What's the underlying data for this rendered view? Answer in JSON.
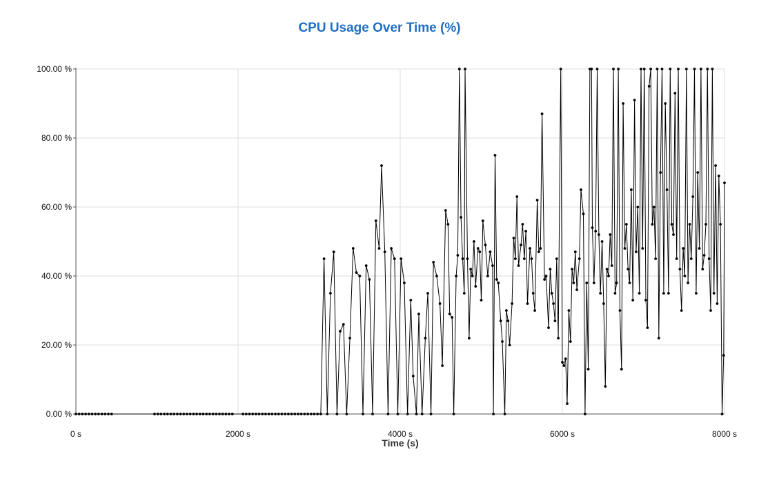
{
  "chart_data": {
    "type": "line",
    "title": "CPU Usage Over Time (%)",
    "xlabel": "Time (s)",
    "ylabel": "",
    "xlim": [
      0,
      8000
    ],
    "ylim": [
      0,
      100
    ],
    "x_ticks": [
      0,
      2000,
      4000,
      6000,
      8000
    ],
    "x_tick_labels": [
      "0 s",
      "2000 s",
      "4000 s",
      "6000 s",
      "8000 s"
    ],
    "y_ticks": [
      0,
      20,
      40,
      60,
      80,
      100
    ],
    "y_tick_labels": [
      "0.00 %",
      "20.00 %",
      "40.00 %",
      "60.00 %",
      "80.00 %",
      "100.00 %"
    ],
    "grid": true,
    "legend": "none",
    "colors": {
      "line": "#000000",
      "title": "#1f6fc4",
      "grid": "#dddddd"
    },
    "series": [
      {
        "points": [
          [
            0,
            0
          ],
          [
            40,
            0
          ],
          [
            80,
            0
          ],
          [
            120,
            0
          ],
          [
            160,
            0
          ],
          [
            200,
            0
          ],
          [
            240,
            0
          ],
          [
            280,
            0
          ],
          [
            320,
            0
          ],
          [
            360,
            0
          ],
          [
            400,
            0
          ],
          [
            440,
            0
          ],
          [
            970,
            0
          ],
          [
            1010,
            0
          ],
          [
            1050,
            0
          ],
          [
            1090,
            0
          ],
          [
            1130,
            0
          ],
          [
            1170,
            0
          ],
          [
            1210,
            0
          ],
          [
            1250,
            0
          ],
          [
            1290,
            0
          ],
          [
            1330,
            0
          ],
          [
            1370,
            0
          ],
          [
            1410,
            0
          ],
          [
            1450,
            0
          ],
          [
            1490,
            0
          ],
          [
            1530,
            0
          ],
          [
            1570,
            0
          ],
          [
            1610,
            0
          ],
          [
            1650,
            0
          ],
          [
            1690,
            0
          ],
          [
            1730,
            0
          ],
          [
            1770,
            0
          ],
          [
            1810,
            0
          ],
          [
            1850,
            0
          ],
          [
            1890,
            0
          ],
          [
            1930,
            0
          ],
          [
            2060,
            0
          ],
          [
            2100,
            0
          ],
          [
            2140,
            0
          ],
          [
            2180,
            0
          ],
          [
            2220,
            0
          ],
          [
            2260,
            0
          ],
          [
            2300,
            0
          ],
          [
            2340,
            0
          ],
          [
            2380,
            0
          ],
          [
            2420,
            0
          ],
          [
            2460,
            0
          ],
          [
            2500,
            0
          ],
          [
            2540,
            0
          ],
          [
            2580,
            0
          ],
          [
            2620,
            0
          ],
          [
            2660,
            0
          ],
          [
            2700,
            0
          ],
          [
            2740,
            0
          ],
          [
            2780,
            0
          ],
          [
            2820,
            0
          ],
          [
            2860,
            0
          ],
          [
            2900,
            0
          ],
          [
            2940,
            0
          ],
          [
            2980,
            0
          ],
          [
            3020,
            0
          ],
          [
            3060,
            45
          ],
          [
            3100,
            0
          ],
          [
            3140,
            35
          ],
          [
            3180,
            47
          ],
          [
            3220,
            0
          ],
          [
            3260,
            24
          ],
          [
            3300,
            26
          ],
          [
            3340,
            0
          ],
          [
            3380,
            22
          ],
          [
            3420,
            48
          ],
          [
            3460,
            41
          ],
          [
            3500,
            40
          ],
          [
            3540,
            0
          ],
          [
            3580,
            43
          ],
          [
            3620,
            39
          ],
          [
            3660,
            0
          ],
          [
            3700,
            56
          ],
          [
            3740,
            48
          ],
          [
            3770,
            72
          ],
          [
            3810,
            47
          ],
          [
            3850,
            0
          ],
          [
            3890,
            48
          ],
          [
            3930,
            45
          ],
          [
            3970,
            0
          ],
          [
            4010,
            45
          ],
          [
            4050,
            38
          ],
          [
            4090,
            0
          ],
          [
            4130,
            33
          ],
          [
            4160,
            11
          ],
          [
            4200,
            0
          ],
          [
            4230,
            29
          ],
          [
            4270,
            0
          ],
          [
            4310,
            22
          ],
          [
            4340,
            35
          ],
          [
            4380,
            0
          ],
          [
            4410,
            44
          ],
          [
            4450,
            40
          ],
          [
            4490,
            32
          ],
          [
            4520,
            14
          ],
          [
            4560,
            59
          ],
          [
            4590,
            55
          ],
          [
            4610,
            29
          ],
          [
            4640,
            28
          ],
          [
            4660,
            0
          ],
          [
            4690,
            40
          ],
          [
            4710,
            46
          ],
          [
            4730,
            100
          ],
          [
            4750,
            57
          ],
          [
            4770,
            45
          ],
          [
            4790,
            35
          ],
          [
            4800,
            100
          ],
          [
            4830,
            45
          ],
          [
            4850,
            22
          ],
          [
            4870,
            42
          ],
          [
            4890,
            40
          ],
          [
            4910,
            50
          ],
          [
            4930,
            37
          ],
          [
            4960,
            48
          ],
          [
            4980,
            47
          ],
          [
            5000,
            33
          ],
          [
            5020,
            56
          ],
          [
            5050,
            49
          ],
          [
            5080,
            40
          ],
          [
            5110,
            47
          ],
          [
            5140,
            43
          ],
          [
            5150,
            0
          ],
          [
            5170,
            75
          ],
          [
            5190,
            39
          ],
          [
            5210,
            38
          ],
          [
            5240,
            27
          ],
          [
            5260,
            21
          ],
          [
            5290,
            0
          ],
          [
            5310,
            30
          ],
          [
            5330,
            27
          ],
          [
            5350,
            20
          ],
          [
            5380,
            32
          ],
          [
            5400,
            51
          ],
          [
            5420,
            45
          ],
          [
            5440,
            63
          ],
          [
            5460,
            43
          ],
          [
            5490,
            49
          ],
          [
            5510,
            55
          ],
          [
            5530,
            45
          ],
          [
            5550,
            53
          ],
          [
            5570,
            32
          ],
          [
            5600,
            48
          ],
          [
            5620,
            45
          ],
          [
            5640,
            35
          ],
          [
            5660,
            30
          ],
          [
            5690,
            62
          ],
          [
            5710,
            47
          ],
          [
            5730,
            48
          ],
          [
            5750,
            87
          ],
          [
            5780,
            39
          ],
          [
            5800,
            40
          ],
          [
            5830,
            25
          ],
          [
            5850,
            42
          ],
          [
            5870,
            35
          ],
          [
            5890,
            32
          ],
          [
            5910,
            27
          ],
          [
            5930,
            45
          ],
          [
            5950,
            22
          ],
          [
            5980,
            100
          ],
          [
            6000,
            15
          ],
          [
            6020,
            14
          ],
          [
            6040,
            16
          ],
          [
            6060,
            3
          ],
          [
            6080,
            30
          ],
          [
            6100,
            21
          ],
          [
            6120,
            42
          ],
          [
            6140,
            38
          ],
          [
            6160,
            47
          ],
          [
            6180,
            36
          ],
          [
            6210,
            45
          ],
          [
            6230,
            65
          ],
          [
            6260,
            58
          ],
          [
            6280,
            0
          ],
          [
            6300,
            38
          ],
          [
            6320,
            13
          ],
          [
            6340,
            100
          ],
          [
            6360,
            100
          ],
          [
            6370,
            54
          ],
          [
            6390,
            38
          ],
          [
            6410,
            53
          ],
          [
            6430,
            100
          ],
          [
            6450,
            52
          ],
          [
            6470,
            35
          ],
          [
            6490,
            50
          ],
          [
            6510,
            32
          ],
          [
            6530,
            8
          ],
          [
            6550,
            42
          ],
          [
            6570,
            40
          ],
          [
            6590,
            52
          ],
          [
            6610,
            43
          ],
          [
            6630,
            100
          ],
          [
            6650,
            35
          ],
          [
            6670,
            38
          ],
          [
            6690,
            100
          ],
          [
            6710,
            30
          ],
          [
            6730,
            13
          ],
          [
            6750,
            90
          ],
          [
            6770,
            48
          ],
          [
            6790,
            55
          ],
          [
            6810,
            42
          ],
          [
            6830,
            38
          ],
          [
            6850,
            65
          ],
          [
            6870,
            33
          ],
          [
            6890,
            91
          ],
          [
            6910,
            47
          ],
          [
            6930,
            60
          ],
          [
            6950,
            35
          ],
          [
            6970,
            100
          ],
          [
            6990,
            48
          ],
          [
            7010,
            100
          ],
          [
            7030,
            33
          ],
          [
            7050,
            25
          ],
          [
            7070,
            95
          ],
          [
            7090,
            100
          ],
          [
            7110,
            55
          ],
          [
            7130,
            60
          ],
          [
            7150,
            45
          ],
          [
            7170,
            100
          ],
          [
            7190,
            22
          ],
          [
            7210,
            70
          ],
          [
            7230,
            100
          ],
          [
            7250,
            35
          ],
          [
            7270,
            90
          ],
          [
            7290,
            65
          ],
          [
            7310,
            35
          ],
          [
            7330,
            100
          ],
          [
            7350,
            55
          ],
          [
            7370,
            52
          ],
          [
            7390,
            93
          ],
          [
            7410,
            45
          ],
          [
            7430,
            100
          ],
          [
            7450,
            42
          ],
          [
            7470,
            30
          ],
          [
            7490,
            48
          ],
          [
            7510,
            40
          ],
          [
            7530,
            100
          ],
          [
            7550,
            38
          ],
          [
            7570,
            55
          ],
          [
            7590,
            45
          ],
          [
            7610,
            63
          ],
          [
            7630,
            100
          ],
          [
            7650,
            35
          ],
          [
            7670,
            70
          ],
          [
            7690,
            48
          ],
          [
            7710,
            100
          ],
          [
            7730,
            42
          ],
          [
            7750,
            46
          ],
          [
            7770,
            55
          ],
          [
            7790,
            100
          ],
          [
            7810,
            45
          ],
          [
            7830,
            30
          ],
          [
            7850,
            100
          ],
          [
            7870,
            35
          ],
          [
            7890,
            72
          ],
          [
            7910,
            32
          ],
          [
            7930,
            69
          ],
          [
            7950,
            55
          ],
          [
            7970,
            0
          ],
          [
            7990,
            17
          ],
          [
            8000,
            67
          ]
        ]
      }
    ]
  }
}
